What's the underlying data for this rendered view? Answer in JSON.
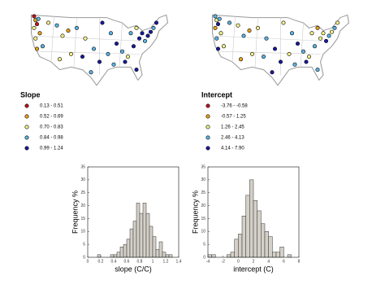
{
  "maps": [
    {
      "title": "Slope",
      "legend": [
        {
          "label": "0.13 - 0.51",
          "color": "#c0141e"
        },
        {
          "label": "0.52 - 0.69",
          "color": "#e8a317"
        },
        {
          "label": "0.70 - 0.83",
          "color": "#f2f08a"
        },
        {
          "label": "0.84 - 0.98",
          "color": "#5ab4e6"
        },
        {
          "label": "0.99 - 1.24",
          "color": "#1a1aa0"
        }
      ]
    },
    {
      "title": "Intercept",
      "legend": [
        {
          "label": "-3.76 - -0.58",
          "color": "#c0141e"
        },
        {
          "label": "-0.57 - 1.25",
          "color": "#e8a317"
        },
        {
          "label": "1.26 - 2.45",
          "color": "#f2f08a"
        },
        {
          "label": "2.46 - 4.13",
          "color": "#5ab4e6"
        },
        {
          "label": "4.14 - 7.90",
          "color": "#1a1aa0"
        }
      ]
    }
  ],
  "chart_data": [
    {
      "type": "histogram",
      "xlabel": "slope (C/C)",
      "ylabel": "Frequency %",
      "color": "#d4d0c8",
      "bins": [
        0.1,
        0.15,
        0.2,
        0.25,
        0.3,
        0.35,
        0.4,
        0.45,
        0.5,
        0.55,
        0.6,
        0.65,
        0.7,
        0.75,
        0.8,
        0.85,
        0.9,
        0.95,
        1.0,
        1.05,
        1.1,
        1.15,
        1.2,
        1.25,
        1.3
      ],
      "values": [
        0,
        1,
        0,
        0,
        0,
        1,
        1,
        2,
        4,
        5,
        7,
        11,
        14,
        21,
        17,
        21,
        17,
        12,
        8,
        3,
        6,
        2,
        1,
        1
      ],
      "xlim": [
        0,
        1.4
      ],
      "xticks": [
        0,
        0.2,
        0.4,
        0.6,
        0.8,
        1,
        1.2,
        1.4
      ],
      "ylim": [
        0,
        35
      ],
      "yticks": [
        0,
        5,
        10,
        15,
        20,
        25,
        30,
        35
      ]
    },
    {
      "type": "histogram",
      "xlabel": "intercept (C)",
      "ylabel": "Frequency %",
      "color": "#d4d0c8",
      "bins": [
        -4,
        -3.5,
        -3,
        -2.5,
        -2,
        -1.5,
        -1,
        -0.5,
        0,
        0.5,
        1,
        1.5,
        2,
        2.5,
        3,
        3.5,
        4,
        4.5,
        5,
        5.5,
        6,
        6.5,
        7
      ],
      "values": [
        1,
        1,
        0,
        0,
        0,
        1,
        2,
        7,
        9,
        16,
        24,
        30,
        22,
        18,
        13,
        10,
        8,
        2,
        2,
        4,
        0,
        1
      ],
      "xlim": [
        -4,
        8
      ],
      "xticks": [
        -4,
        -2,
        0,
        2,
        4,
        6,
        8
      ],
      "ylim": [
        0,
        35
      ],
      "yticks": [
        0,
        5,
        10,
        15,
        20,
        25,
        30,
        35
      ]
    }
  ]
}
